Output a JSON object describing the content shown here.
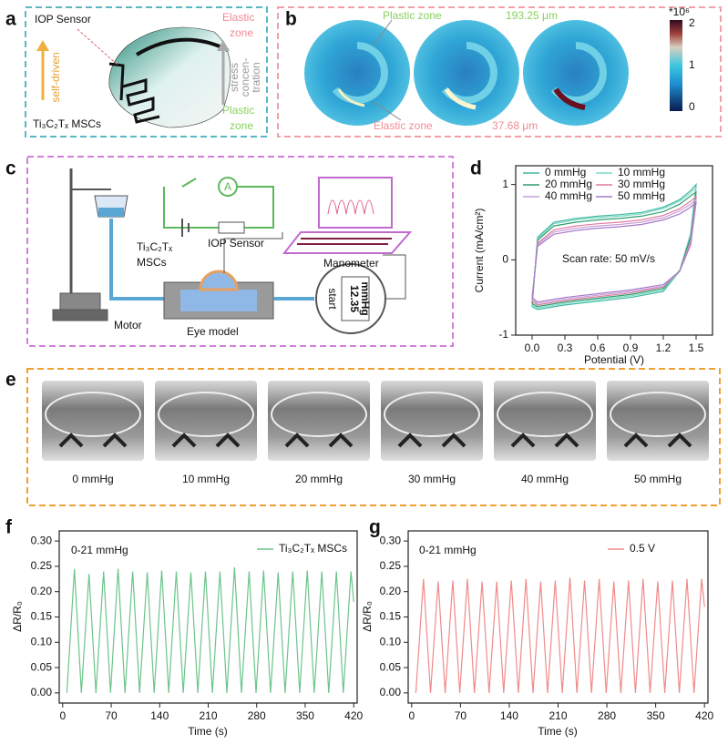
{
  "panel_a": {
    "letter": "a",
    "sensor": "IOP Sensor",
    "elastic": [
      "Elastic",
      "zone"
    ],
    "driven": "self-driven",
    "stress": [
      "stress",
      "concen-",
      "tration"
    ],
    "plastic": [
      "Plastic",
      "zone"
    ],
    "device": "Ti₃C₂Tₓ MSCs"
  },
  "panel_b": {
    "letter": "b",
    "plastic": "Plastic zone",
    "plastic_size": "193.25 μm",
    "elastic": "Elastic zone",
    "elastic_size": "37.68 μm",
    "colorbar": {
      "label": "*10⁶",
      "ticks": [
        2,
        1,
        0
      ]
    }
  },
  "panel_c": {
    "letter": "c",
    "device": [
      "Ti₃C₂Tₓ",
      "MSCs"
    ],
    "sensor": "IOP Sensor",
    "ammeter": "A",
    "manometer": "Manometer",
    "motor": "Motor",
    "eye": "Eye model",
    "reading": [
      "12.35",
      "mmHg"
    ],
    "button": "start"
  },
  "panel_d": {
    "letter": "d"
  },
  "panel_e": {
    "letter": "e",
    "labels": [
      "0 mmHg",
      "10 mmHg",
      "20 mmHg",
      "30 mmHg",
      "40 mmHg",
      "50 mmHg"
    ]
  },
  "panel_f": {
    "letter": "f"
  },
  "panel_g": {
    "letter": "g"
  },
  "chart_data": [
    {
      "type": "line",
      "x_label": "Potential (V)",
      "y_label": "Current (mA/cm²)",
      "annotation": "Scan rate: 50 mV/s",
      "legend": "upper left",
      "xlim": [
        -0.15,
        1.65
      ],
      "ylim": [
        -1,
        1.25
      ],
      "xticks": [
        {
          "value": 0,
          "label": "0.0"
        },
        0.3,
        0.6,
        0.9,
        1.2,
        1.5
      ],
      "yticks": [
        -1,
        0,
        1
      ],
      "series": [
        {
          "name": "0 mmHg",
          "color": "#3cb8a0",
          "x": [
            0,
            0.05,
            0.2,
            0.4,
            0.6,
            0.8,
            1.0,
            1.2,
            1.35,
            1.45,
            1.5,
            1.45,
            1.35,
            1.2,
            0.9,
            0.6,
            0.3,
            0.05,
            0
          ],
          "values": [
            -0.62,
            0.3,
            0.5,
            0.55,
            0.58,
            0.6,
            0.63,
            0.7,
            0.8,
            0.92,
            1.0,
            0.35,
            -0.15,
            -0.42,
            -0.5,
            -0.55,
            -0.6,
            -0.66,
            -0.62
          ]
        },
        {
          "name": "10 mmHg",
          "color": "#7fd8c6",
          "x": [
            0,
            0.05,
            0.2,
            0.4,
            0.6,
            0.8,
            1.0,
            1.2,
            1.35,
            1.45,
            1.5,
            1.45,
            1.35,
            1.2,
            0.9,
            0.6,
            0.3,
            0.05,
            0
          ],
          "values": [
            -0.6,
            0.28,
            0.48,
            0.53,
            0.56,
            0.58,
            0.61,
            0.68,
            0.78,
            0.89,
            0.96,
            0.33,
            -0.15,
            -0.4,
            -0.48,
            -0.53,
            -0.58,
            -0.64,
            -0.6
          ]
        },
        {
          "name": "20 mmHg",
          "color": "#2e9e6e",
          "x": [
            0,
            0.05,
            0.2,
            0.4,
            0.6,
            0.8,
            1.0,
            1.2,
            1.35,
            1.45,
            1.5,
            1.45,
            1.35,
            1.2,
            0.9,
            0.6,
            0.3,
            0.05,
            0
          ],
          "values": [
            -0.58,
            0.26,
            0.45,
            0.5,
            0.53,
            0.55,
            0.58,
            0.64,
            0.74,
            0.85,
            0.9,
            0.3,
            -0.14,
            -0.38,
            -0.46,
            -0.51,
            -0.56,
            -0.62,
            -0.58
          ]
        },
        {
          "name": "30 mmHg",
          "color": "#e07aa0",
          "x": [
            0,
            0.05,
            0.2,
            0.4,
            0.6,
            0.8,
            1.0,
            1.2,
            1.35,
            1.45,
            1.5,
            1.45,
            1.35,
            1.2,
            0.9,
            0.6,
            0.3,
            0.05,
            0
          ],
          "values": [
            -0.55,
            0.22,
            0.4,
            0.45,
            0.48,
            0.5,
            0.53,
            0.59,
            0.68,
            0.78,
            0.84,
            0.25,
            -0.15,
            -0.36,
            -0.44,
            -0.49,
            -0.54,
            -0.6,
            -0.55
          ]
        },
        {
          "name": "40 mmHg",
          "color": "#c8a0d8",
          "x": [
            0,
            0.05,
            0.2,
            0.4,
            0.6,
            0.8,
            1.0,
            1.2,
            1.35,
            1.45,
            1.5,
            1.45,
            1.35,
            1.2,
            0.9,
            0.6,
            0.3,
            0.05,
            0
          ],
          "values": [
            -0.53,
            0.2,
            0.37,
            0.42,
            0.45,
            0.47,
            0.5,
            0.56,
            0.65,
            0.74,
            0.8,
            0.22,
            -0.15,
            -0.35,
            -0.42,
            -0.47,
            -0.52,
            -0.58,
            -0.53
          ]
        },
        {
          "name": "50 mmHg",
          "color": "#a878c8",
          "x": [
            0,
            0.05,
            0.2,
            0.4,
            0.6,
            0.8,
            1.0,
            1.2,
            1.35,
            1.45,
            1.5,
            1.45,
            1.35,
            1.2,
            0.9,
            0.6,
            0.3,
            0.05,
            0
          ],
          "values": [
            -0.5,
            0.18,
            0.34,
            0.39,
            0.42,
            0.44,
            0.47,
            0.53,
            0.61,
            0.7,
            0.76,
            0.2,
            -0.15,
            -0.33,
            -0.4,
            -0.45,
            -0.5,
            -0.56,
            -0.5
          ]
        }
      ]
    },
    {
      "type": "line",
      "x_label": "Time (s)",
      "y_label": "ΔR/R₀",
      "annotation": "0-21 mmHg",
      "legend": "upper right",
      "xlim": [
        -5,
        425
      ],
      "ylim": [
        -0.02,
        0.32
      ],
      "xticks": [
        0,
        70,
        140,
        210,
        280,
        350,
        420
      ],
      "yticks": [
        {
          "value": 0,
          "label": "0.00"
        },
        0.05,
        {
          "value": 0.1,
          "label": "0.10"
        },
        0.15,
        {
          "value": 0.2,
          "label": "0.20"
        },
        0.25,
        {
          "value": 0.3,
          "label": "0.30"
        }
      ],
      "series": [
        {
          "name": "Ti₃C₂Tₓ MSCs",
          "color": "#6cc48a",
          "x": [
            6,
            17,
            27,
            38,
            48,
            59,
            69,
            80,
            90,
            101,
            111,
            122,
            132,
            143,
            153,
            164,
            174,
            185,
            195,
            206,
            216,
            227,
            237,
            248,
            258,
            269,
            279,
            290,
            300,
            311,
            321,
            332,
            342,
            353,
            363,
            374,
            384,
            395,
            405,
            416,
            420
          ],
          "values": [
            0,
            0.245,
            0,
            0.235,
            0,
            0.24,
            0,
            0.245,
            0,
            0.24,
            0,
            0.238,
            0,
            0.242,
            0,
            0.24,
            0,
            0.238,
            0,
            0.24,
            0,
            0.24,
            0,
            0.248,
            0,
            0.24,
            0,
            0.242,
            0,
            0.238,
            0,
            0.24,
            0,
            0.242,
            0,
            0.24,
            0,
            0.24,
            0,
            0.24,
            0.18
          ]
        }
      ]
    },
    {
      "type": "line",
      "x_label": "Time (s)",
      "y_label": "ΔR/R₀",
      "annotation": "0-21 mmHg",
      "legend": "upper right",
      "xlim": [
        -5,
        425
      ],
      "ylim": [
        -0.02,
        0.32
      ],
      "xticks": [
        0,
        70,
        140,
        210,
        280,
        350,
        420
      ],
      "yticks": [
        {
          "value": 0,
          "label": "0.00"
        },
        0.05,
        {
          "value": 0.1,
          "label": "0.10"
        },
        0.15,
        {
          "value": 0.2,
          "label": "0.20"
        },
        0.25,
        {
          "value": 0.3,
          "label": "0.30"
        }
      ],
      "series": [
        {
          "name": "0.5 V",
          "color": "#f08a8a",
          "x": [
            6,
            17,
            27,
            38,
            48,
            59,
            69,
            80,
            90,
            101,
            111,
            122,
            132,
            143,
            153,
            164,
            174,
            185,
            195,
            206,
            216,
            227,
            237,
            248,
            258,
            269,
            279,
            290,
            300,
            311,
            321,
            332,
            342,
            353,
            363,
            374,
            384,
            395,
            405,
            416,
            420
          ],
          "values": [
            0,
            0.225,
            0,
            0.22,
            0,
            0.222,
            0,
            0.225,
            0,
            0.22,
            0,
            0.22,
            0,
            0.222,
            0,
            0.225,
            0,
            0.22,
            0,
            0.222,
            0,
            0.228,
            0,
            0.222,
            0,
            0.225,
            0,
            0.22,
            0,
            0.222,
            0,
            0.225,
            0,
            0.22,
            0,
            0.222,
            0,
            0.225,
            0,
            0.225,
            0.17
          ]
        }
      ]
    }
  ]
}
